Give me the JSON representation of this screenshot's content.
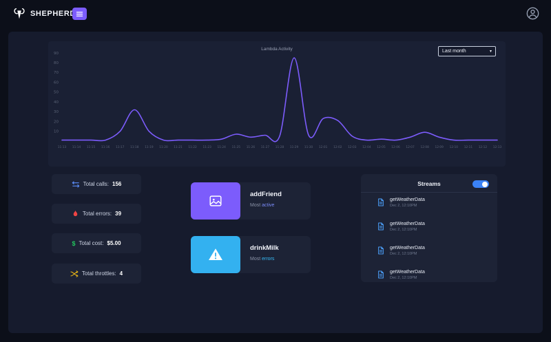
{
  "topbar": {
    "brand": "SHEPHERD"
  },
  "chart": {
    "range_selected": "Last month"
  },
  "chart_data": {
    "type": "line",
    "title": "Lambda Activity",
    "x": [
      "11:13",
      "11:14",
      "11:15",
      "11:16",
      "11:17",
      "11:18",
      "11:19",
      "11:20",
      "11:21",
      "11:22",
      "11:23",
      "11:24",
      "11:25",
      "11:26",
      "11:27",
      "11:28",
      "11:29",
      "11:30",
      "12:01",
      "12:02",
      "12:03",
      "12:04",
      "12:05",
      "12:06",
      "12:07",
      "12:08",
      "12:09",
      "12:10",
      "12:11",
      "12:12",
      "12:13"
    ],
    "values": [
      1,
      1,
      1,
      1,
      10,
      32,
      10,
      1,
      1,
      1,
      1,
      2,
      7,
      4,
      6,
      5,
      85,
      6,
      23,
      21,
      5,
      1,
      2,
      1,
      4,
      9,
      4,
      1,
      1,
      1,
      1
    ],
    "ylim": [
      0,
      90
    ],
    "yticks": [
      10,
      20,
      30,
      40,
      50,
      60,
      70,
      80,
      90
    ],
    "line_color": "#7c5cfc",
    "xlabel": "",
    "ylabel": "",
    "grid": false,
    "legend": "none"
  },
  "stats": [
    {
      "label": "Total calls:",
      "value": "156",
      "icon": "calls-icon",
      "color": "#5b8cf7"
    },
    {
      "label": "Total errors:",
      "value": "39",
      "icon": "flame-icon",
      "color": "#ef4444"
    },
    {
      "label": "Total cost:",
      "value": "$5.00",
      "icon": "dollar-icon",
      "color": "#22c55e"
    },
    {
      "label": "Total throttles:",
      "value": "4",
      "icon": "shuffle-icon",
      "color": "#e7b416"
    }
  ],
  "highlights": [
    {
      "title": "addFriend",
      "subtitle_prefix": "Most",
      "subtitle_accent": "active",
      "icon": "image-icon",
      "icon_bg": "#7c5cfc",
      "accent_color": "#7b8cf8"
    },
    {
      "title": "drinkMilk",
      "subtitle_prefix": "Most",
      "subtitle_accent": "errors",
      "icon": "warning-icon",
      "icon_bg": "#33b1f0",
      "accent_color": "#38bdf8"
    }
  ],
  "streams": {
    "title": "Streams",
    "toggle_on": true,
    "items": [
      {
        "name": "getWeatherData",
        "time": "Dec 2, 12:10PM"
      },
      {
        "name": "getWeatherData",
        "time": "Dec 2, 12:10PM"
      },
      {
        "name": "getWeatherData",
        "time": "Dec 2, 12:10PM"
      },
      {
        "name": "getWeatherData",
        "time": "Dec 2, 12:10PM"
      }
    ]
  }
}
